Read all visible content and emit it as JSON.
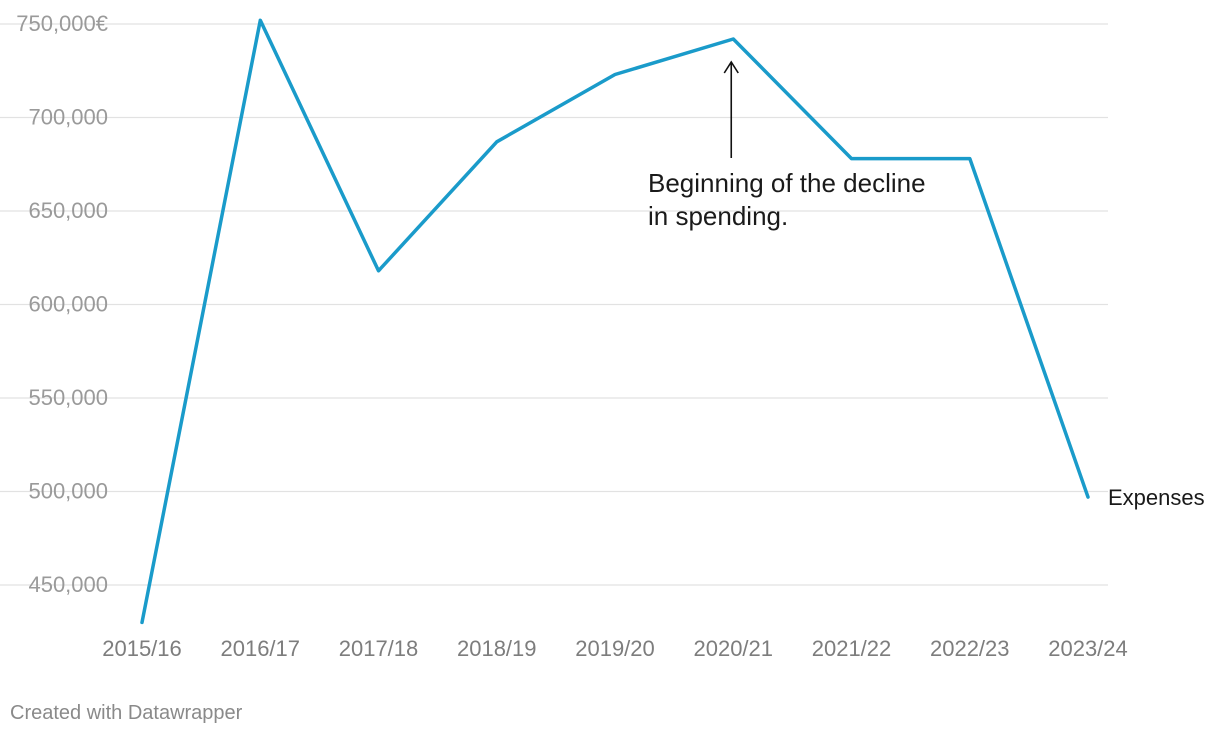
{
  "chart_data": {
    "type": "line",
    "title": "",
    "xlabel": "",
    "ylabel": "",
    "categories": [
      "2015/16",
      "2016/17",
      "2017/18",
      "2018/19",
      "2019/20",
      "2020/21",
      "2021/22",
      "2022/23",
      "2023/24"
    ],
    "series": [
      {
        "name": "Expenses",
        "values": [
          430000,
          752000,
          618000,
          687000,
          723000,
          742000,
          678000,
          678000,
          497000
        ],
        "color": "#1a9bca"
      }
    ],
    "ylim": [
      430000,
      750000
    ],
    "yticks": [
      450000,
      500000,
      550000,
      600000,
      650000,
      700000,
      750000
    ],
    "ytick_labels": [
      "450,000",
      "500,000",
      "550,000",
      "600,000",
      "650,000",
      "700,000",
      "750,000€"
    ],
    "grid": true,
    "legend": "none",
    "annotations": [
      {
        "category": "2020/21",
        "lines": [
          "Beginning of the decline",
          "in spending."
        ]
      }
    ]
  },
  "footer": {
    "credit": "Created with Datawrapper"
  }
}
